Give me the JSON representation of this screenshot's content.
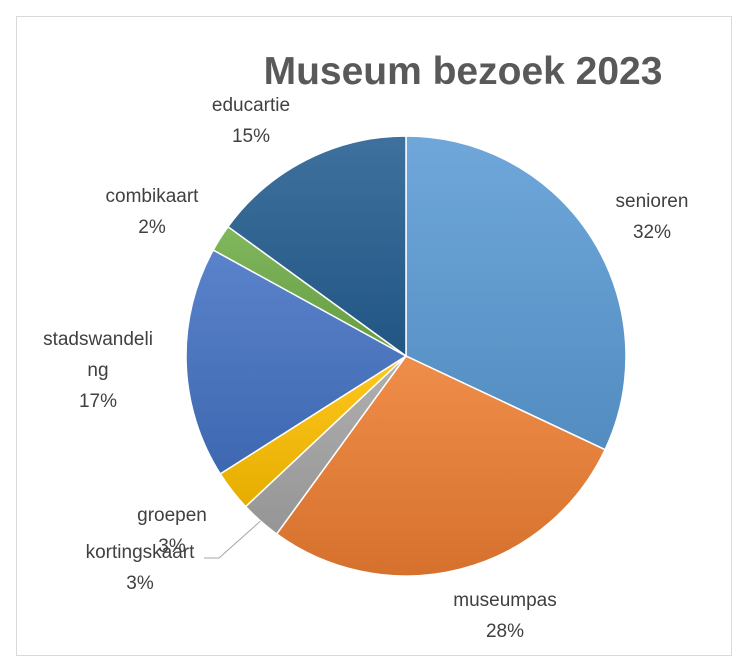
{
  "chart_data": {
    "type": "pie",
    "title": "Museum bezoek 2023",
    "slices": [
      {
        "label": "senioren",
        "label_lines": [
          "senioren"
        ],
        "percent_label": "32%",
        "value": 32,
        "color": "#5b9bd5"
      },
      {
        "label": "museumpas",
        "label_lines": [
          "museumpas"
        ],
        "percent_label": "28%",
        "value": 28,
        "color": "#ed7d31"
      },
      {
        "label": "kortingskaart",
        "label_lines": [
          "kortingskaart"
        ],
        "percent_label": "3%",
        "value": 3,
        "color": "#a5a5a5"
      },
      {
        "label": "groepen",
        "label_lines": [
          "groepen"
        ],
        "percent_label": "3%",
        "value": 3,
        "color": "#ffc000"
      },
      {
        "label": "stadswandeling",
        "label_lines": [
          "stadswandeli",
          "ng"
        ],
        "percent_label": "17%",
        "value": 17,
        "color": "#4472c4"
      },
      {
        "label": "combikaart",
        "label_lines": [
          "combikaart"
        ],
        "percent_label": "2%",
        "value": 2,
        "color": "#70ad47"
      },
      {
        "label": "educartie",
        "label_lines": [
          "educartie"
        ],
        "percent_label": "15%",
        "value": 15,
        "color": "#255e91"
      }
    ]
  }
}
